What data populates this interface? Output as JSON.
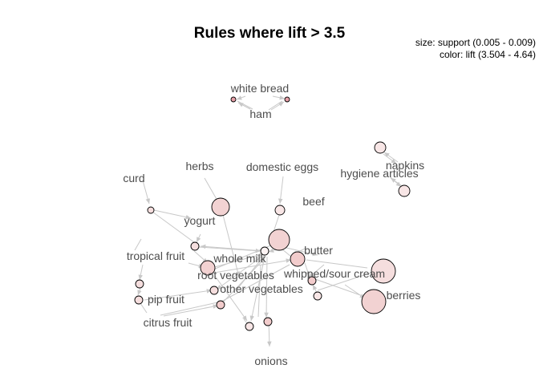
{
  "title": "Rules where lift > 3.5",
  "legend": {
    "size": "size: support (0.005 - 0.009)",
    "color": "color: lift (3.504 - 4.64)"
  },
  "item_labels": {
    "white_bread": "white bread",
    "ham": "ham",
    "napkins": "napkins",
    "hygiene_articles": "hygiene articles",
    "herbs": "herbs",
    "domestic_eggs": "domestic eggs",
    "curd": "curd",
    "beef": "beef",
    "yogurt": "yogurt",
    "butter": "butter",
    "tropical_fruit": "tropical fruit",
    "whole_milk": "whole milk",
    "whipped_sour_cream": "whipped/sour cream",
    "root_vegetables": "root vegetables",
    "other_vegetables": "other vegetables",
    "berries": "berries",
    "pip_fruit": "pip fruit",
    "citrus_fruit": "citrus fruit",
    "onions": "onions"
  },
  "colors": {
    "node_fill_default": "#f5dede",
    "node_fill_high_lift": "#f2c6c6",
    "node_fill_top_lift": "#e8a0a8",
    "edge": "#c8c8c8",
    "label": "#4d4d4d"
  }
}
